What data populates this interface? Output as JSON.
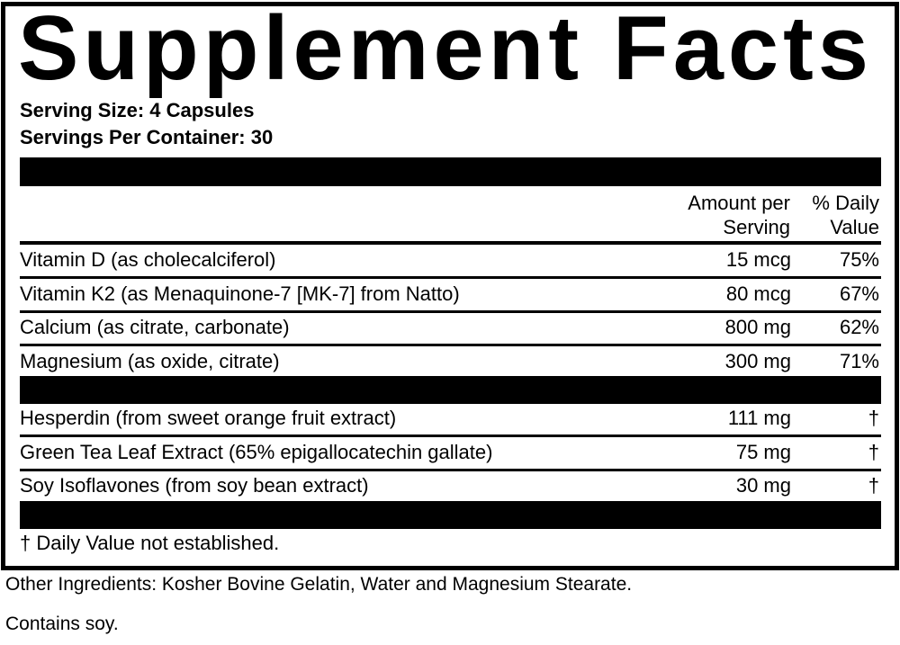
{
  "title": "Supplement Facts",
  "serving_size": "Serving Size: 4 Capsules",
  "servings_per_container": "Servings Per Container: 30",
  "header": {
    "amount_line1": "Amount per",
    "amount_line2": "Serving",
    "dv_line1": "% Daily",
    "dv_line2": "Value"
  },
  "group1": [
    {
      "name": "Vitamin D (as cholecalciferol)",
      "amount": "15 mcg",
      "dv": "75%"
    },
    {
      "name": "Vitamin K2 (as Menaquinone-7 [MK-7] from Natto)",
      "amount": "80 mcg",
      "dv": "67%"
    },
    {
      "name": "Calcium (as citrate, carbonate)",
      "amount": "800 mg",
      "dv": "62%"
    },
    {
      "name": "Magnesium (as oxide, citrate)",
      "amount": "300 mg",
      "dv": "71%"
    }
  ],
  "group2": [
    {
      "name": "Hesperdin (from sweet orange fruit extract)",
      "amount": "111 mg",
      "dv": "†"
    },
    {
      "name": "Green Tea Leaf Extract (65% epigallocatechin gallate)",
      "amount": "75 mg",
      "dv": "†"
    },
    {
      "name": "Soy Isoflavones (from soy bean extract)",
      "amount": "30 mg",
      "dv": "†"
    }
  ],
  "footnote": "† Daily Value not established.",
  "other_ingredients": "Other Ingredients: Kosher Bovine Gelatin, Water and Magnesium Stearate.",
  "contains": "Contains soy."
}
